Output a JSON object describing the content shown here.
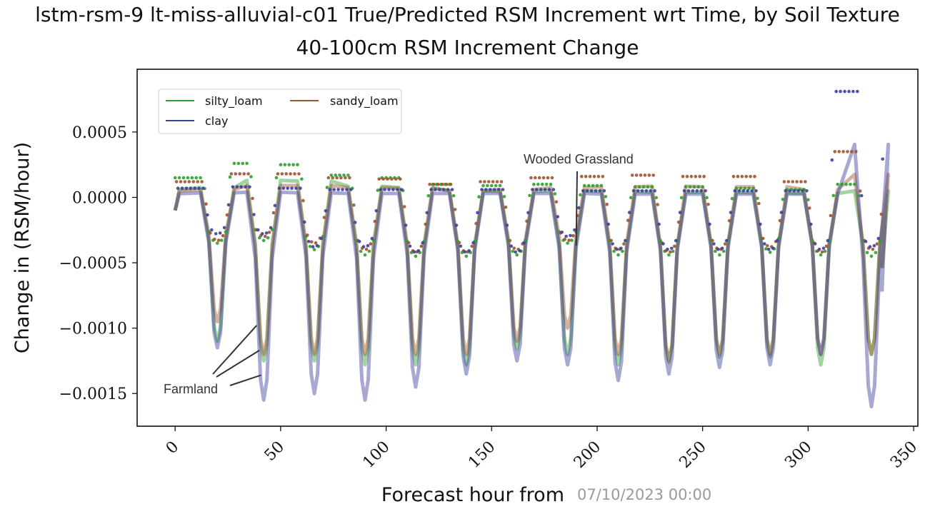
{
  "chart_data": {
    "type": "line",
    "title": "lstm-rsm-9 lt-miss-alluvial-c01 True/Predicted RSM Increment wrt Time, by Soil Texture",
    "subtitle": "40-100cm RSM Increment Change",
    "xlabel": "Forecast hour from",
    "xlabel_date": "07/10/2023 00:00",
    "ylabel": "Change in (RSM/hour)",
    "xlim": [
      -18,
      352
    ],
    "ylim": [
      -0.00175,
      0.00098
    ],
    "x_ticks": [
      0,
      50,
      100,
      150,
      200,
      250,
      300,
      350
    ],
    "x_tick_labels": [
      "0",
      "50",
      "100",
      "150",
      "200",
      "250",
      "300",
      "350"
    ],
    "y_ticks": [
      0.0005,
      0.0,
      -0.0005,
      -0.001,
      -0.0015
    ],
    "y_tick_labels": [
      "0.0005",
      "0.0000",
      "−0.0005",
      "−0.0010",
      "−0.0015"
    ],
    "legend": {
      "position": "top-left",
      "entries": [
        "silty_loam",
        "sandy_loam",
        "clay"
      ]
    },
    "grid": false,
    "series": [
      {
        "name": "silty_loam",
        "color": "#2ca02c",
        "cycles": {
          "peak": [
            0.00015,
            0.00026,
            0.00025,
            0.00017,
            0.00015,
            0.0001,
            9e-05,
            0.0001,
            9e-05,
            8e-05,
            8e-05,
            7e-05,
            6e-05,
            0.0001
          ],
          "true_min": [
            -0.0011,
            -0.00125,
            -0.00125,
            -0.00128,
            -0.00128,
            -0.00128,
            -0.00116,
            -0.0012,
            -0.00128,
            -0.00126,
            -0.00122,
            -0.00122,
            -0.00128,
            -0.0012
          ],
          "pred_min": [
            -0.00035,
            -0.00033,
            -0.0004,
            -0.00044,
            -0.00045,
            -0.00045,
            -0.00044,
            -0.00035,
            -0.00044,
            -0.00044,
            -0.00044,
            -0.00042,
            -0.00044,
            -0.00045
          ]
        }
      },
      {
        "name": "sandy_loam",
        "color": "#a0522d",
        "cycles": {
          "peak": [
            0.00012,
            0.00018,
            0.00018,
            0.00015,
            0.00014,
            0.0001,
            0.00012,
            0.00015,
            0.00016,
            0.00017,
            0.00016,
            0.00016,
            0.00012,
            0.00035
          ],
          "true_min": [
            -0.00095,
            -0.0012,
            -0.0012,
            -0.0012,
            -0.0012,
            -0.0012,
            -0.0011,
            -0.001,
            -0.0012,
            -0.00125,
            -0.0012,
            -0.0012,
            -0.0012,
            -0.0012
          ],
          "pred_min": [
            -0.00033,
            -0.0003,
            -0.00035,
            -0.0004,
            -0.00042,
            -0.00042,
            -0.0004,
            -0.00033,
            -0.0004,
            -0.00042,
            -0.0004,
            -0.00038,
            -0.00042,
            -0.0004
          ]
        }
      },
      {
        "name": "clay",
        "color": "#3b3f9e",
        "cycles": {
          "peak": [
            7e-05,
            8e-05,
            7e-05,
            6e-05,
            6e-05,
            6e-05,
            6e-05,
            6e-05,
            5e-05,
            5e-05,
            5e-05,
            5e-05,
            5e-05,
            0.00081
          ],
          "true_min": [
            -0.00115,
            -0.00155,
            -0.0015,
            -0.00155,
            -0.00145,
            -0.00135,
            -0.00125,
            -0.00128,
            -0.0014,
            -0.00135,
            -0.0013,
            -0.00128,
            -0.0012,
            -0.0016
          ],
          "pred_min": [
            -0.00028,
            -0.00028,
            -0.00038,
            -0.00038,
            -0.00042,
            -0.00042,
            -0.00042,
            -0.0003,
            -0.0004,
            -0.0004,
            -0.0004,
            -0.0004,
            -0.0004,
            -0.00038
          ]
        }
      }
    ],
    "cycle_minima_hours": [
      20,
      42,
      66,
      90,
      114,
      138,
      162,
      186,
      210,
      234,
      258,
      282,
      306,
      330
    ],
    "annotations": [
      {
        "text": "Farmland",
        "x": 42,
        "y": -0.0012
      },
      {
        "text": "Wooded Grassland",
        "x": 186,
        "y": -0.0004
      }
    ]
  }
}
